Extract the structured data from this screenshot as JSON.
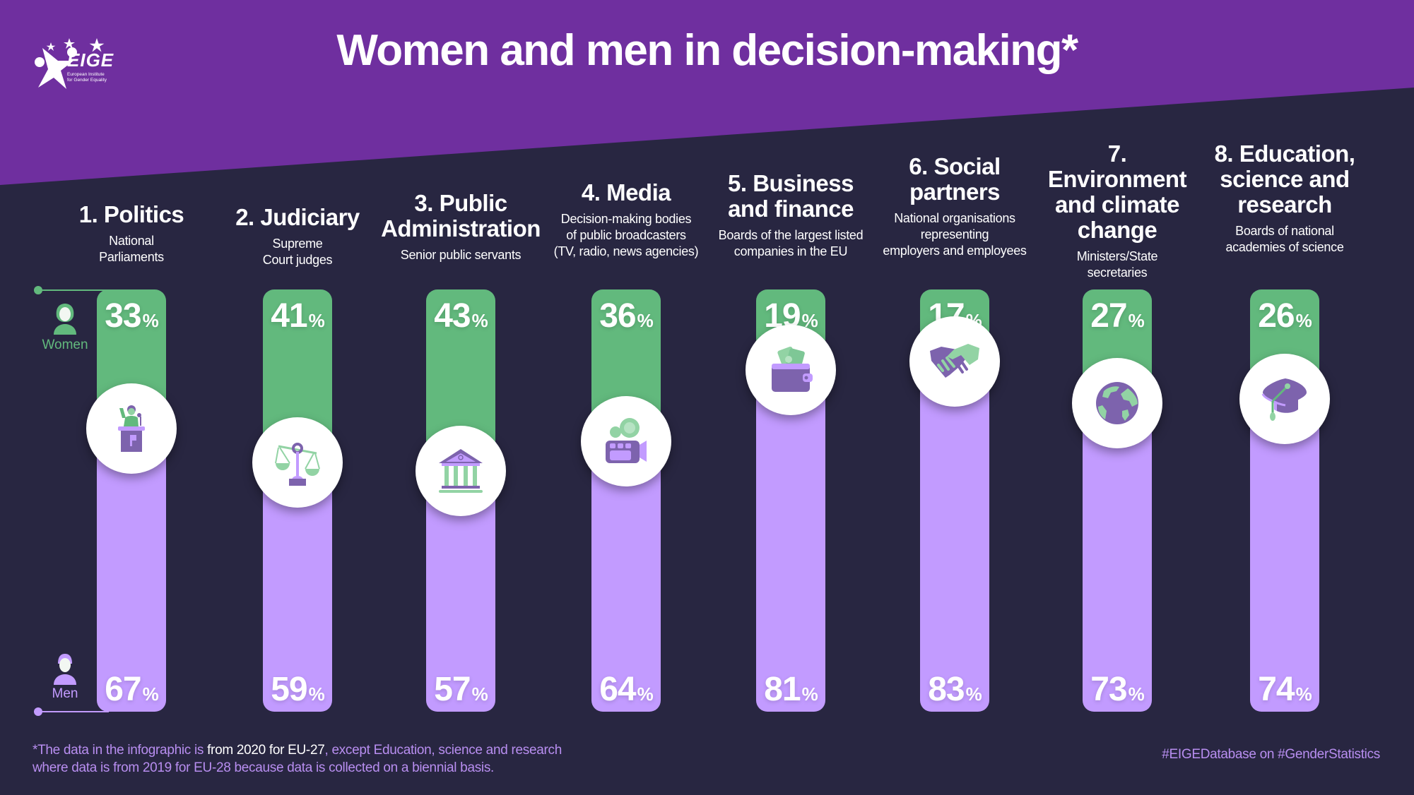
{
  "header": {
    "title": "Women and men in decision-making*",
    "logo": {
      "name": "EIGE",
      "subtitle_line1": "European Institute",
      "subtitle_line2": "for Gender Equality"
    }
  },
  "legend": {
    "women_label": "Women",
    "men_label": "Men"
  },
  "colors": {
    "header_purple": "#6f2f9f",
    "background": "#282641",
    "women_green": "#62b97d",
    "men_lavender": "#c29bff",
    "icon_purple": "#7d63ad",
    "icon_light_green": "#92d3a4",
    "footer_text": "#b88ef0"
  },
  "categories": [
    {
      "title_line1": "1. Politics",
      "title_line2": "",
      "title_line3": "",
      "sub_line1": "National",
      "sub_line2": "Parliaments",
      "sub_line3": "",
      "women": "33",
      "men": "67",
      "icon": "speaker-podium-icon"
    },
    {
      "title_line1": "2. Judiciary",
      "title_line2": "",
      "title_line3": "",
      "sub_line1": "Supreme",
      "sub_line2": "Court judges",
      "sub_line3": "",
      "women": "41",
      "men": "59",
      "icon": "scales-icon"
    },
    {
      "title_line1": "3. Public",
      "title_line2": "Administration",
      "title_line3": "",
      "sub_line1": "Senior public servants",
      "sub_line2": "",
      "sub_line3": "",
      "women": "43",
      "men": "57",
      "icon": "government-building-icon"
    },
    {
      "title_line1": "4. Media",
      "title_line2": "",
      "title_line3": "",
      "sub_line1": "Decision-making bodies",
      "sub_line2": "of public broadcasters",
      "sub_line3": "(TV, radio, news agencies)",
      "women": "36",
      "men": "64",
      "icon": "video-camera-icon"
    },
    {
      "title_line1": "5. Business",
      "title_line2": "and finance",
      "title_line3": "",
      "sub_line1": "Boards of the largest listed",
      "sub_line2": "companies in the EU",
      "sub_line3": "",
      "women": "19",
      "men": "81",
      "icon": "wallet-icon"
    },
    {
      "title_line1": "6. Social",
      "title_line2": "partners",
      "title_line3": "",
      "sub_line1": "National organisations",
      "sub_line2": "representing",
      "sub_line3": "employers and employees",
      "women": "17",
      "men": "83",
      "icon": "handshake-icon"
    },
    {
      "title_line1": "7. Environment",
      "title_line2": "and climate",
      "title_line3": "change",
      "sub_line1": "Ministers/State",
      "sub_line2": "secretaries",
      "sub_line3": "",
      "women": "27",
      "men": "73",
      "icon": "globe-icon"
    },
    {
      "title_line1": "8. Education,",
      "title_line2": "science and",
      "title_line3": "research",
      "sub_line1": "Boards of national",
      "sub_line2": "academies of science",
      "sub_line3": "",
      "women": "26",
      "men": "74",
      "icon": "graduation-cap-icon"
    }
  ],
  "percent_sign": "%",
  "footer": {
    "note_part1": "*The data in the infographic is ",
    "note_highlight": "from 2020 for EU-27",
    "note_part2": ", except Education, science and research",
    "note_line2": "where data is from 2019 for EU-28 because data is collected on a biennial basis.",
    "hashtag": "#EIGEDatabase on #GenderStatistics"
  },
  "chart_data": {
    "type": "bar",
    "title": "Women and men in decision-making*",
    "categories": [
      "1. Politics",
      "2. Judiciary",
      "3. Public Administration",
      "4. Media",
      "5. Business and finance",
      "6. Social partners",
      "7. Environment and climate change",
      "8. Education, science and research"
    ],
    "series": [
      {
        "name": "Women",
        "values": [
          33,
          41,
          43,
          36,
          19,
          17,
          27,
          26
        ]
      },
      {
        "name": "Men",
        "values": [
          67,
          59,
          57,
          64,
          81,
          83,
          73,
          74
        ]
      }
    ],
    "stacked": true,
    "orientation": "vertical",
    "ylim": [
      0,
      100
    ],
    "unit": "%",
    "legend": "left"
  }
}
